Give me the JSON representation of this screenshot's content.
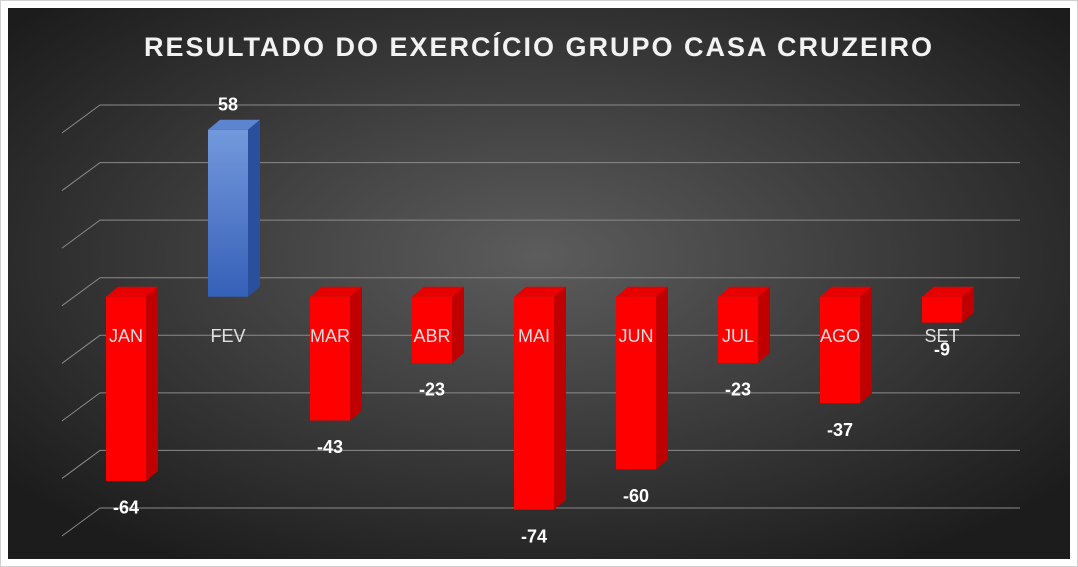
{
  "chart_data": {
    "type": "bar3d",
    "title": "RESULTADO DO EXERCÍCIO GRUPO CASA CRUZEIRO",
    "categories": [
      "JAN",
      "FEV",
      "MAR",
      "ABR",
      "MAI",
      "JUN",
      "JUL",
      "AGO",
      "SET"
    ],
    "values": [
      -64,
      58,
      -43,
      -23,
      -74,
      -60,
      -23,
      -37,
      -9
    ],
    "color": "#ff0000",
    "positive_color": "#4472c4",
    "ylim": [
      -80,
      60
    ],
    "yticks": [
      -80,
      -60,
      -40,
      -20,
      0,
      20,
      40,
      60
    ],
    "grid": true
  }
}
